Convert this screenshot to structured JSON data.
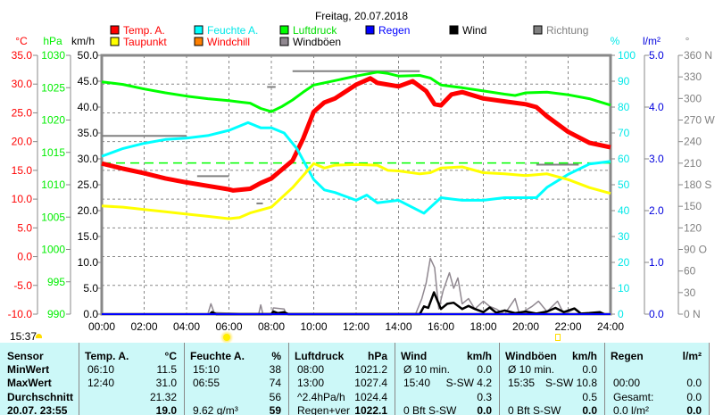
{
  "title": "Freitag, 20.07.2018",
  "legend": [
    {
      "label": "Temp. A.",
      "color": "#ff0000",
      "text_color": "#ff0000"
    },
    {
      "label": "Feuchte A.",
      "color": "#00ffff",
      "text_color": "#00e8e8"
    },
    {
      "label": "Luftdruck",
      "color": "#00ff00",
      "text_color": "#00dd00"
    },
    {
      "label": "Regen",
      "color": "#0000ff",
      "text_color": "#0000ff"
    },
    {
      "label": "Wind",
      "color": "#000000",
      "text_color": "#000000"
    },
    {
      "label": "Richtung",
      "color": "#808080",
      "text_color": "#808080"
    },
    {
      "label": "Taupunkt",
      "color": "#ffff00",
      "text_color": "#ff0000"
    },
    {
      "label": "Windchill",
      "color": "#ff8000",
      "text_color": "#ff0000"
    },
    {
      "label": "Windböen",
      "color": "#908890",
      "text_color": "#000000"
    }
  ],
  "axes": {
    "temp": {
      "unit": "°C",
      "min": -10,
      "max": 35,
      "step": 5,
      "color": "#ff0000"
    },
    "pressure": {
      "unit": "hPa",
      "min": 990,
      "max": 1030,
      "step": 5,
      "color": "#00ee00"
    },
    "wind": {
      "unit": "km/h",
      "min": 0,
      "max": 50,
      "step": 5,
      "color": "#000000"
    },
    "humidity": {
      "unit": "%",
      "min": 0,
      "max": 100,
      "step": 10,
      "color": "#00e8e8"
    },
    "rain": {
      "unit": "l/m²",
      "min": 0,
      "max": 5,
      "step": 1,
      "color": "#0000dd"
    },
    "direction": {
      "unit": "°",
      "min": 0,
      "max": 360,
      "step": 30,
      "color": "#808080",
      "compass": {
        "0": "N",
        "90": "O",
        "180": "S",
        "270": "W",
        "360": "N"
      }
    }
  },
  "chart_data": {
    "type": "line",
    "title": "Freitag, 20.07.2018",
    "x_ticks": [
      "00:00",
      "02:00",
      "04:00",
      "06:00",
      "08:00",
      "10:00",
      "12:00",
      "14:00",
      "16:00",
      "18:00",
      "20:00",
      "22:00",
      "24:00"
    ],
    "xlim": [
      0,
      24
    ],
    "grid": true,
    "series": [
      {
        "name": "Luftdruck",
        "axis": "pressure",
        "color": "#00ff00",
        "points": [
          [
            0,
            1025.9
          ],
          [
            1,
            1025.5
          ],
          [
            2,
            1024.8
          ],
          [
            3,
            1024.2
          ],
          [
            4,
            1023.7
          ],
          [
            5,
            1023.3
          ],
          [
            6,
            1023.0
          ],
          [
            6.5,
            1022.8
          ],
          [
            7,
            1022.6
          ],
          [
            7.5,
            1021.8
          ],
          [
            8,
            1021.3
          ],
          [
            8.5,
            1022.1
          ],
          [
            9,
            1023.1
          ],
          [
            9.5,
            1024.3
          ],
          [
            10,
            1025.4
          ],
          [
            11,
            1026.1
          ],
          [
            12,
            1026.8
          ],
          [
            13,
            1027.4
          ],
          [
            13.5,
            1027.2
          ],
          [
            14,
            1026.8
          ],
          [
            15,
            1026.9
          ],
          [
            15.5,
            1026.5
          ],
          [
            16,
            1025.4
          ],
          [
            17,
            1025.0
          ],
          [
            18,
            1024.5
          ],
          [
            19,
            1024.0
          ],
          [
            19.5,
            1023.8
          ],
          [
            20,
            1024.2
          ],
          [
            21,
            1024.3
          ],
          [
            22,
            1023.9
          ],
          [
            23,
            1023.3
          ],
          [
            24,
            1022.3
          ]
        ]
      },
      {
        "name": "Temp. A.",
        "axis": "temp",
        "color": "#ff0000",
        "points": [
          [
            0,
            16.2
          ],
          [
            1,
            15.3
          ],
          [
            2,
            14.5
          ],
          [
            3,
            13.6
          ],
          [
            4,
            12.9
          ],
          [
            5,
            12.3
          ],
          [
            6,
            11.7
          ],
          [
            6.2,
            11.5
          ],
          [
            7,
            11.8
          ],
          [
            7.5,
            12.8
          ],
          [
            8,
            13.6
          ],
          [
            9,
            16.7
          ],
          [
            9.5,
            20.5
          ],
          [
            10,
            25.2
          ],
          [
            10.5,
            26.8
          ],
          [
            11,
            27.5
          ],
          [
            12,
            29.9
          ],
          [
            12.67,
            31.0
          ],
          [
            13,
            30.2
          ],
          [
            14,
            29.6
          ],
          [
            14.67,
            30.5
          ],
          [
            15.3,
            28.8
          ],
          [
            15.7,
            26.5
          ],
          [
            16,
            26.3
          ],
          [
            16.5,
            28.2
          ],
          [
            17,
            28.6
          ],
          [
            18,
            27.5
          ],
          [
            19,
            27.0
          ],
          [
            20,
            26.5
          ],
          [
            20.5,
            26.0
          ],
          [
            21,
            24.4
          ],
          [
            22,
            21.7
          ],
          [
            23,
            19.8
          ],
          [
            24,
            19.0
          ]
        ]
      },
      {
        "name": "Feuchte A.",
        "axis": "humidity",
        "color": "#00ffff",
        "points": [
          [
            0,
            61
          ],
          [
            1,
            64
          ],
          [
            2,
            66
          ],
          [
            3,
            67.5
          ],
          [
            4,
            68
          ],
          [
            5,
            69
          ],
          [
            6,
            71
          ],
          [
            6.9,
            74
          ],
          [
            7.5,
            72
          ],
          [
            8,
            72
          ],
          [
            8.6,
            70
          ],
          [
            9.2,
            64
          ],
          [
            9.6,
            58
          ],
          [
            10,
            52
          ],
          [
            10.5,
            48
          ],
          [
            11,
            47
          ],
          [
            12,
            44
          ],
          [
            12.5,
            46
          ],
          [
            13,
            43
          ],
          [
            14,
            44
          ],
          [
            15.2,
            39
          ],
          [
            15.6,
            42
          ],
          [
            16,
            45
          ],
          [
            17,
            44
          ],
          [
            18,
            44
          ],
          [
            19,
            45
          ],
          [
            20,
            45
          ],
          [
            20.5,
            45
          ],
          [
            21,
            49
          ],
          [
            22,
            54
          ],
          [
            23,
            58
          ],
          [
            24,
            59
          ]
        ]
      },
      {
        "name": "Taupunkt",
        "axis": "temp",
        "color": "#ffff00",
        "points": [
          [
            0,
            8.8
          ],
          [
            1,
            8.6
          ],
          [
            2,
            8.2
          ],
          [
            3,
            7.8
          ],
          [
            4,
            7.4
          ],
          [
            5,
            7.0
          ],
          [
            6,
            6.6
          ],
          [
            6.5,
            6.8
          ],
          [
            7,
            7.6
          ],
          [
            8,
            8.6
          ],
          [
            9,
            12.0
          ],
          [
            10,
            16.2
          ],
          [
            10.5,
            15.4
          ],
          [
            11,
            15.9
          ],
          [
            12,
            16.0
          ],
          [
            13,
            15.9
          ],
          [
            13.5,
            15.0
          ],
          [
            14,
            14.9
          ],
          [
            15,
            14.4
          ],
          [
            15.5,
            14.6
          ],
          [
            16,
            15.4
          ],
          [
            17,
            15.6
          ],
          [
            18,
            14.6
          ],
          [
            19,
            14.4
          ],
          [
            20,
            14.1
          ],
          [
            21,
            14.4
          ],
          [
            22,
            13.4
          ],
          [
            23,
            12.0
          ],
          [
            24,
            11.0
          ]
        ]
      },
      {
        "name": "Windböen",
        "axis": "wind",
        "color": "#908890",
        "points": [
          [
            5,
            0
          ],
          [
            5.15,
            2
          ],
          [
            5.3,
            0.3
          ],
          [
            7.4,
            0
          ],
          [
            7.5,
            1.8
          ],
          [
            7.6,
            0
          ],
          [
            8,
            0
          ],
          [
            8.1,
            1.2
          ],
          [
            8.6,
            1.0
          ],
          [
            8.7,
            0
          ],
          [
            14.8,
            0
          ],
          [
            15.1,
            3
          ],
          [
            15.3,
            6
          ],
          [
            15.5,
            10.8
          ],
          [
            15.7,
            9
          ],
          [
            15.9,
            1
          ],
          [
            16.1,
            4.5
          ],
          [
            16.4,
            8
          ],
          [
            16.6,
            5
          ],
          [
            16.8,
            7
          ],
          [
            17,
            2
          ],
          [
            17.3,
            3
          ],
          [
            17.6,
            1
          ],
          [
            18,
            2.5
          ],
          [
            18.3,
            1.5
          ],
          [
            18.6,
            1
          ],
          [
            19,
            0
          ],
          [
            19.5,
            3
          ],
          [
            19.7,
            0
          ],
          [
            20.3,
            1.5
          ],
          [
            20.6,
            2.5
          ],
          [
            21,
            0.5
          ],
          [
            21.5,
            2.5
          ],
          [
            21.8,
            0
          ],
          [
            22.3,
            1
          ],
          [
            22.6,
            0
          ]
        ]
      },
      {
        "name": "Wind",
        "axis": "wind",
        "color": "#000000",
        "points": [
          [
            5.1,
            0
          ],
          [
            5.2,
            0.4
          ],
          [
            5.4,
            0
          ],
          [
            8,
            0
          ],
          [
            8.1,
            0.5
          ],
          [
            8.3,
            0.2
          ],
          [
            8.6,
            0.4
          ],
          [
            8.8,
            0
          ],
          [
            15,
            0
          ],
          [
            15.2,
            1.5
          ],
          [
            15.4,
            1.2
          ],
          [
            15.67,
            4.2
          ],
          [
            16,
            1.0
          ],
          [
            16.3,
            2.0
          ],
          [
            16.6,
            2.2
          ],
          [
            17,
            1.0
          ],
          [
            17.3,
            1.6
          ],
          [
            17.6,
            1.0
          ],
          [
            18,
            0.4
          ],
          [
            18.3,
            1.3
          ],
          [
            18.6,
            0.3
          ],
          [
            19,
            0.7
          ],
          [
            19.5,
            0.2
          ],
          [
            20,
            0.5
          ],
          [
            20.5,
            0.1
          ],
          [
            21,
            0.5
          ],
          [
            21.4,
            1.2
          ],
          [
            21.8,
            0.4
          ],
          [
            22.3,
            1.1
          ],
          [
            22.6,
            0.1
          ],
          [
            23,
            0.2
          ],
          [
            23.5,
            0.4
          ],
          [
            23.7,
            0
          ]
        ]
      },
      {
        "name": "Regen",
        "axis": "rain",
        "color": "#0000ff",
        "points": [
          [
            0,
            0
          ],
          [
            24,
            0
          ]
        ]
      }
    ],
    "direction_segments": [
      {
        "from": 0,
        "to": 4,
        "deg": 248
      },
      {
        "from": 7.8,
        "to": 8.2,
        "deg": 316
      },
      {
        "from": 9,
        "to": 15,
        "deg": 338
      },
      {
        "from": 4.5,
        "to": 6,
        "deg": 192
      },
      {
        "from": 7.3,
        "to": 7.6,
        "deg": 154
      },
      {
        "from": 20.5,
        "to": 22.5,
        "deg": 208
      }
    ],
    "reference_line": {
      "axis": "wind",
      "value": 29.2,
      "color": "#00ff00"
    }
  },
  "sun": {
    "sunrise_time": "15:37"
  },
  "table": {
    "headers": [
      "Sensor",
      "Temp. A.",
      "°C",
      "Feuchte A.",
      "%",
      "Luftdruck",
      "hPa",
      "Wind",
      "km/h",
      "Windböen",
      "km/h",
      "Regen",
      "l/m²"
    ],
    "rows": [
      {
        "label": "MinWert",
        "temp_time": "06:10",
        "temp": "11.5",
        "hum_time": "15:10",
        "hum": "38",
        "press_time": "08:00",
        "press": "1021.2",
        "wind_l": "Ø 10 min.",
        "wind": "0.0",
        "gust_l": "Ø 10 min.",
        "gust": "0.0",
        "rain_l": "",
        "rain": ""
      },
      {
        "label": "MaxWert",
        "temp_time": "12:40",
        "temp": "31.0",
        "hum_time": "06:55",
        "hum": "74",
        "press_time": "13:00",
        "press": "1027.4",
        "wind_l": "15:40",
        "wind": "S-SW 4.2",
        "gust_l": "15:35",
        "gust": "S-SW 10.8",
        "rain_l": "00:00",
        "rain": "0.0"
      },
      {
        "label": "Durchschnitt",
        "temp_time": "",
        "temp": "21.32",
        "hum_time": "",
        "hum": "56",
        "press_time": "^2.4hPa/h",
        "press": "1024.4",
        "wind_l": "",
        "wind": "0.3",
        "gust_l": "",
        "gust": "0.5",
        "rain_l": "Gesamt:",
        "rain": "0.0"
      },
      {
        "label": "20.07. 23:55",
        "temp_time": "",
        "temp": "19.0",
        "hum_time": "9.62 g/m³",
        "hum": "59",
        "press_time": "Regen+ver",
        "press": "1022.1",
        "wind_l": "0 Bft S-SW",
        "wind": "0.0",
        "gust_l": "0 Bft S-SW",
        "gust": "0.0",
        "rain_l": "0.0 l/m²",
        "rain": "0.0"
      }
    ]
  }
}
